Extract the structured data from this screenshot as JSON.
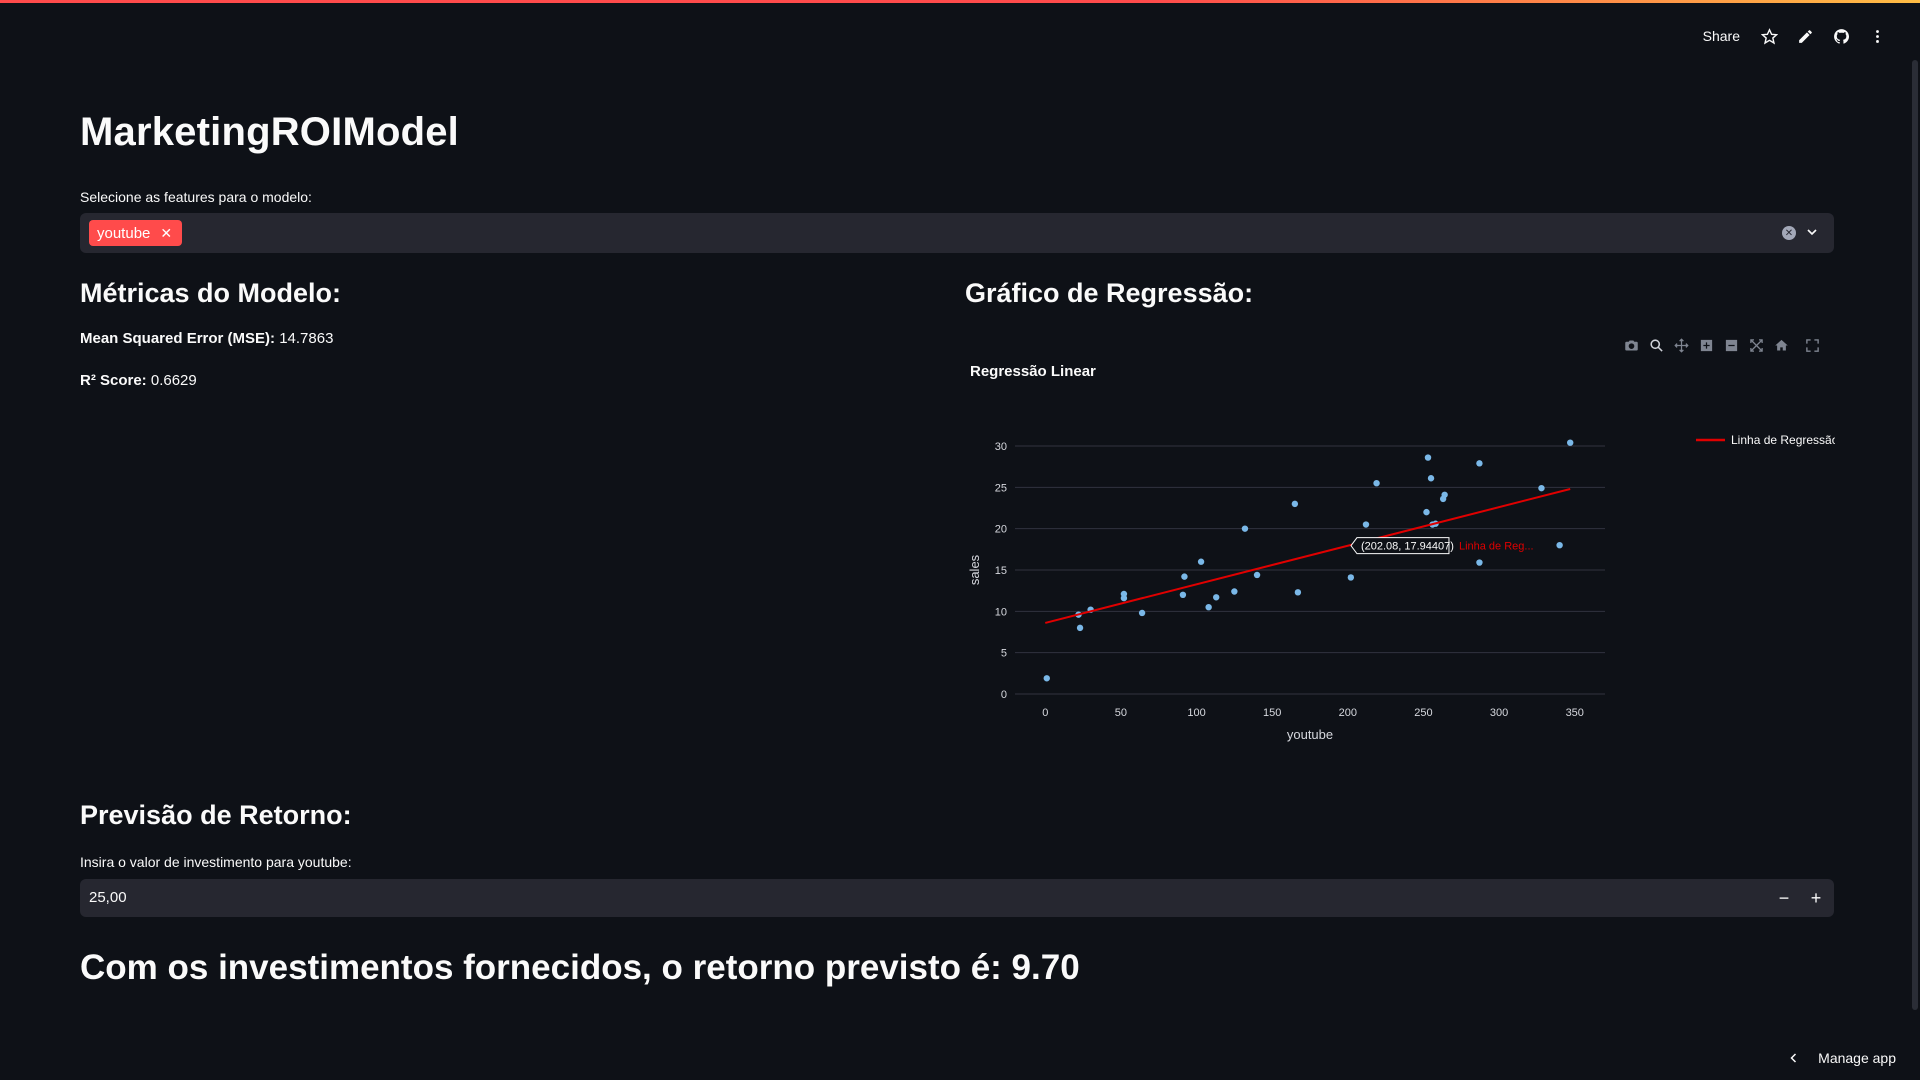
{
  "header": {
    "share_label": "Share",
    "icons": [
      "star-icon",
      "pencil-icon",
      "github-icon",
      "more-vertical-icon"
    ]
  },
  "colors": {
    "accent": "#ff4b4b",
    "background": "#0e1117",
    "input_bg": "#262730",
    "point": "#7ab8e8",
    "line": "#e00000"
  },
  "page_title": "MarketingROIModel",
  "features": {
    "label": "Selecione as features para o modelo:",
    "selected": [
      "youtube"
    ]
  },
  "metrics": {
    "heading": "Métricas do Modelo:",
    "mse_label": "Mean Squared Error (MSE):",
    "mse_value": "14.7863",
    "r2_label": "R² Score:",
    "r2_value": "0.6629"
  },
  "chart_section": {
    "heading": "Gráfico de Regressão:"
  },
  "chart_data": {
    "type": "scatter",
    "title": "Regressão Linear",
    "xlabel": "youtube",
    "ylabel": "sales",
    "xlim": [
      -20,
      370
    ],
    "ylim": [
      0,
      30
    ],
    "xticks": [
      0,
      50,
      100,
      150,
      200,
      250,
      300,
      350
    ],
    "yticks": [
      0,
      5,
      10,
      15,
      20,
      25,
      30
    ],
    "grid": true,
    "legend_position": "top-right",
    "points": [
      {
        "x": 1,
        "y": 1.9
      },
      {
        "x": 22,
        "y": 9.6
      },
      {
        "x": 23,
        "y": 8
      },
      {
        "x": 30,
        "y": 10.2
      },
      {
        "x": 52,
        "y": 11.6
      },
      {
        "x": 52,
        "y": 12.1
      },
      {
        "x": 64,
        "y": 9.8
      },
      {
        "x": 91,
        "y": 12
      },
      {
        "x": 92,
        "y": 14.2
      },
      {
        "x": 103,
        "y": 16
      },
      {
        "x": 108,
        "y": 10.5
      },
      {
        "x": 113,
        "y": 11.7
      },
      {
        "x": 125,
        "y": 12.4
      },
      {
        "x": 132,
        "y": 20
      },
      {
        "x": 140,
        "y": 14.4
      },
      {
        "x": 165,
        "y": 23
      },
      {
        "x": 167,
        "y": 12.3
      },
      {
        "x": 202,
        "y": 14.1
      },
      {
        "x": 212,
        "y": 20.5
      },
      {
        "x": 219,
        "y": 25.5
      },
      {
        "x": 252,
        "y": 22
      },
      {
        "x": 253,
        "y": 28.6
      },
      {
        "x": 255,
        "y": 26.1
      },
      {
        "x": 256,
        "y": 20.5
      },
      {
        "x": 258,
        "y": 20.6
      },
      {
        "x": 263,
        "y": 23.6
      },
      {
        "x": 264,
        "y": 24.1
      },
      {
        "x": 287,
        "y": 15.9
      },
      {
        "x": 287,
        "y": 27.9
      },
      {
        "x": 328,
        "y": 24.9
      },
      {
        "x": 340,
        "y": 18
      },
      {
        "x": 347,
        "y": 30.4
      }
    ],
    "regression_line": {
      "name": "Linha de Regressão",
      "x": [
        0,
        347
      ],
      "y": [
        8.6,
        24.8
      ]
    },
    "hover": {
      "x": 202.08,
      "y": 17.94407,
      "text": "(202.08, 17.94407)",
      "series_label": "Linha de Reg..."
    }
  },
  "prediction": {
    "heading": "Previsão de Retorno:",
    "input_label": "Insira o valor de investimento para youtube:",
    "input_value": "25,00",
    "minus_label": "−",
    "plus_label": "+",
    "result_text": "Com os investimentos fornecidos, o retorno previsto é: 9.70"
  },
  "footer": {
    "manage_label": "Manage app"
  }
}
